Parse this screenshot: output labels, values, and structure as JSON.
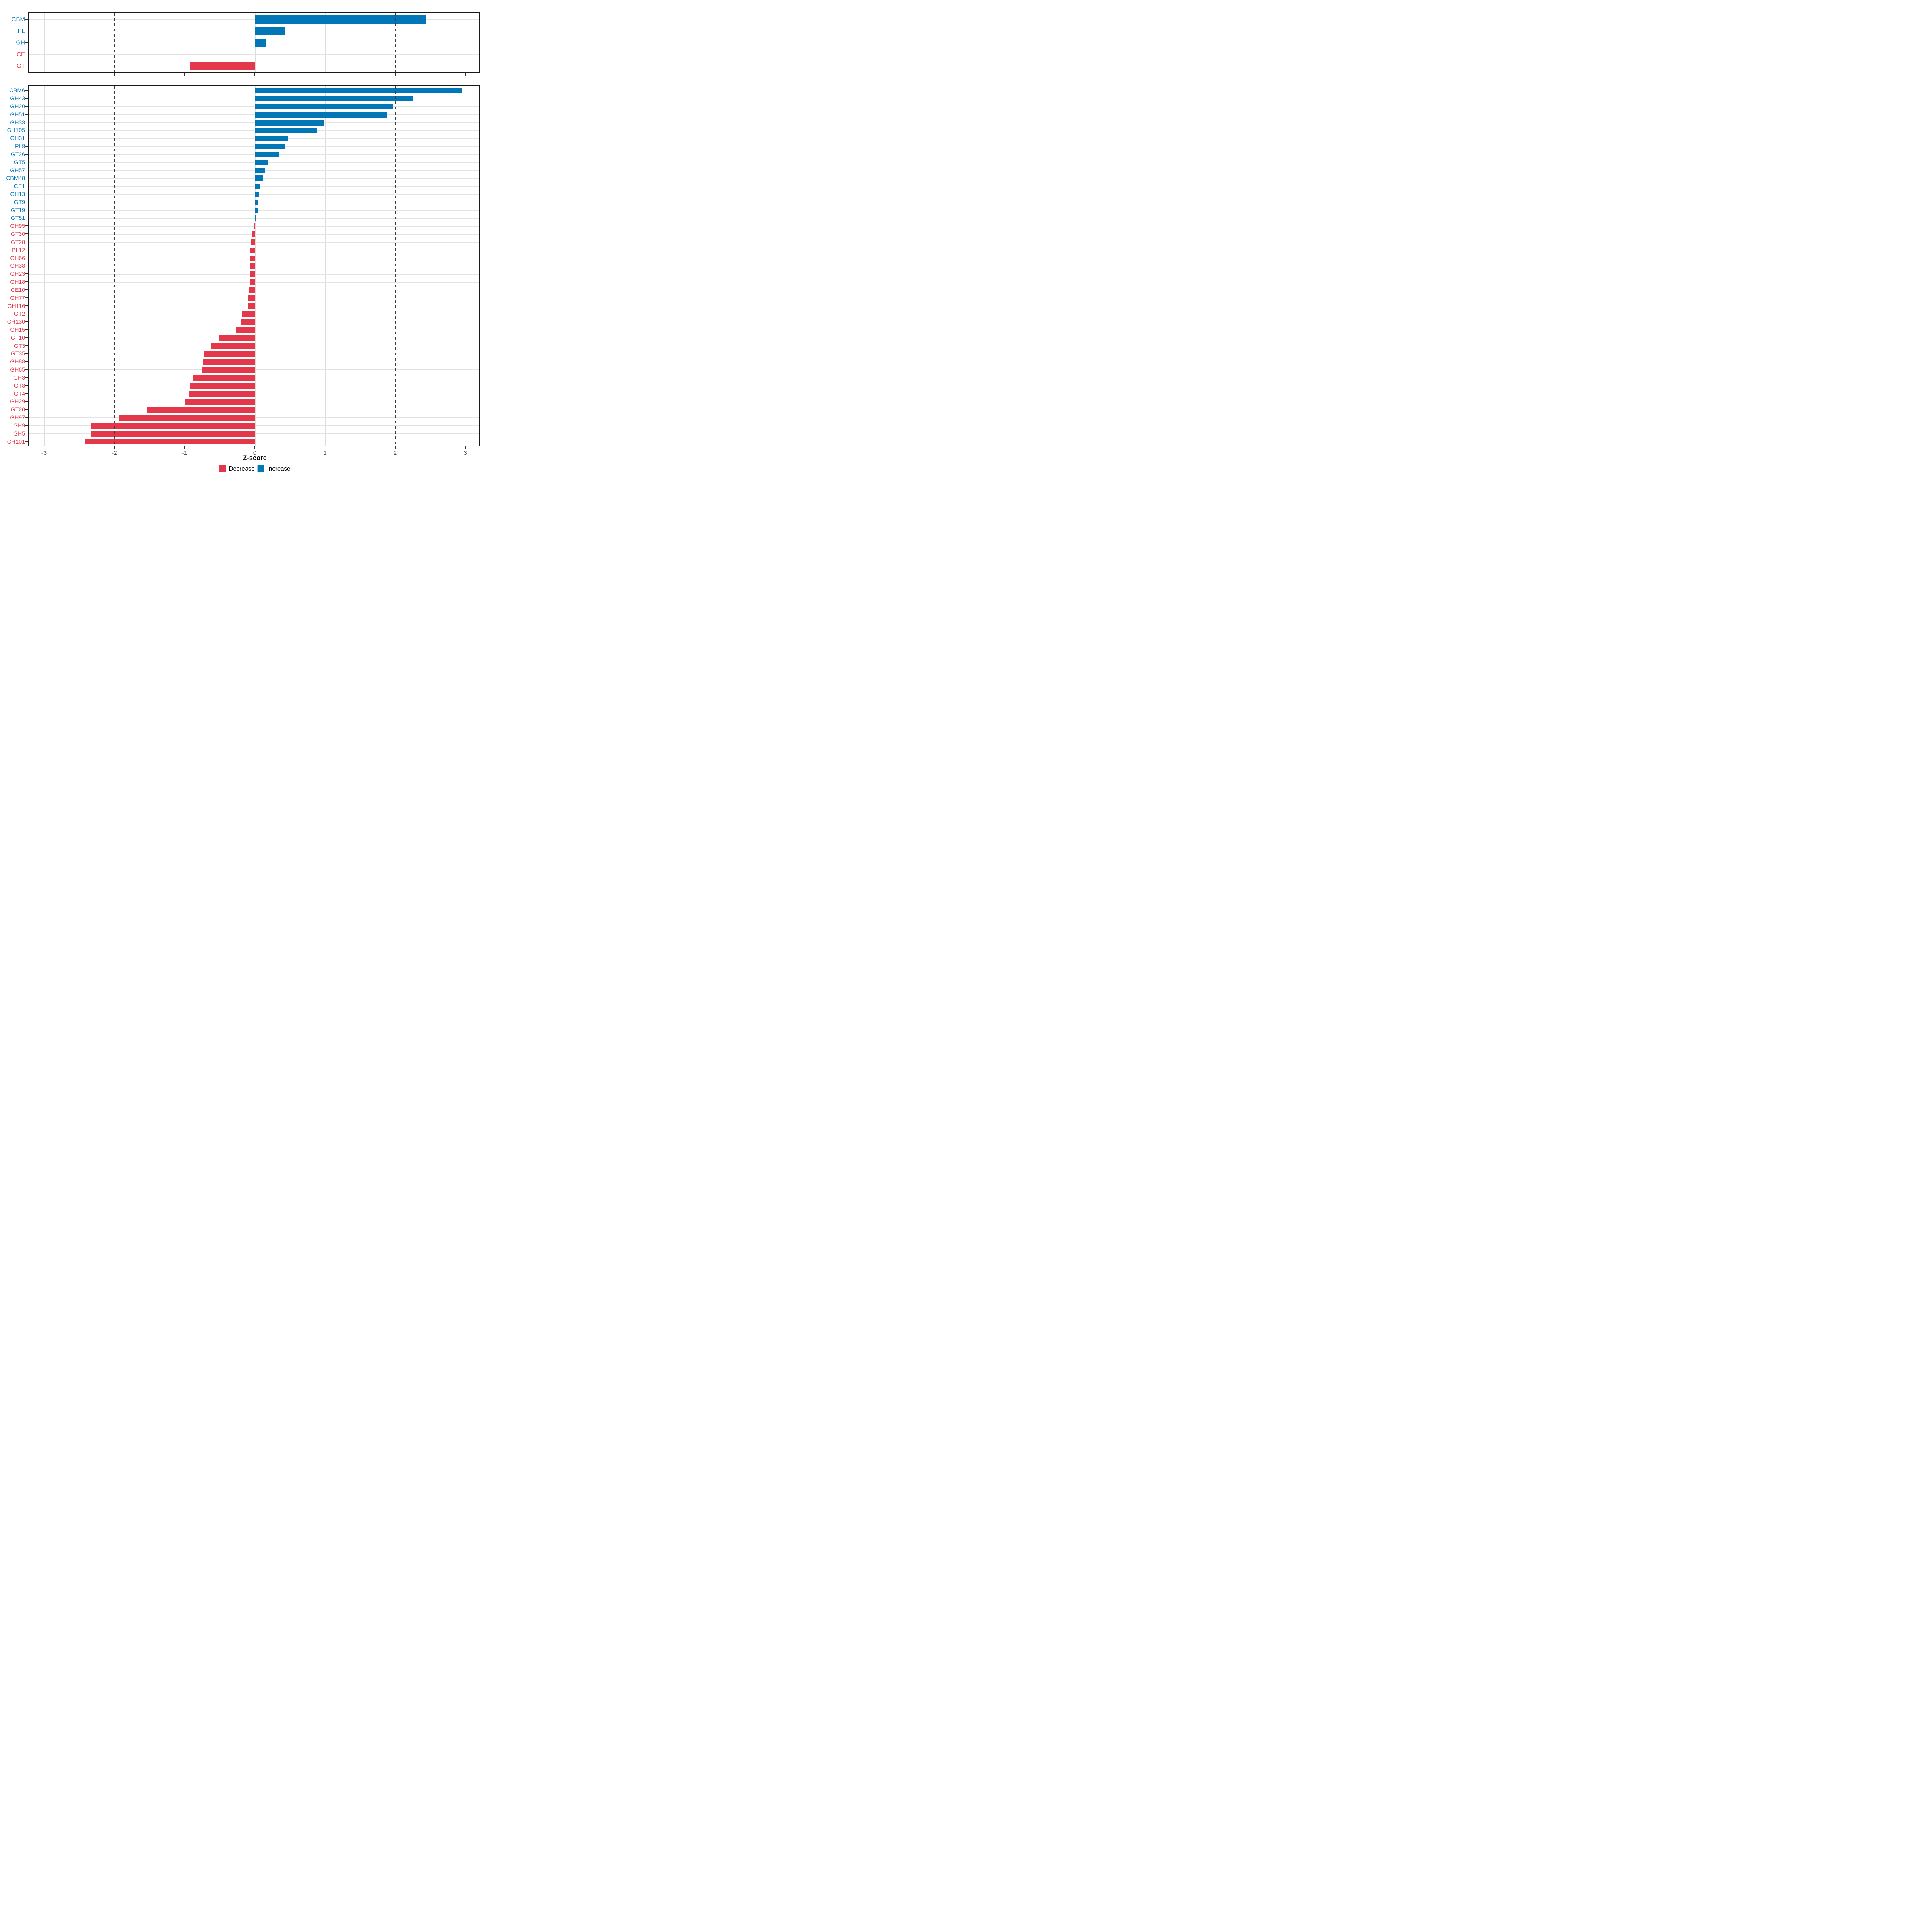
{
  "colors": {
    "increase": "#0277B8",
    "decrease": "#E4384A",
    "grid_h": "#E3E3E3",
    "grid_v": "#DCDCDC",
    "dashed_line": "#3C3C3C",
    "panel_border": "#1A1A1A",
    "tick_mark": "#333333",
    "axis_text": "#4D4D4D"
  },
  "axis": {
    "title": "Z-score",
    "tick_values": [
      -3,
      -2,
      -1,
      0,
      1,
      2,
      3
    ],
    "tick_labels": [
      "-3",
      "-2",
      "-1",
      "0",
      "1",
      "2",
      "3"
    ],
    "dashed_at": [
      -2,
      2
    ],
    "range": [
      -3.22,
      3.22
    ]
  },
  "legend": {
    "decrease_label": "Decrease",
    "increase_label": "Increase"
  },
  "chart_data": [
    {
      "type": "bar",
      "orientation": "horizontal",
      "panel": "classes",
      "title": "",
      "xlabel": "Z-score",
      "xlim": [
        -3.22,
        3.22
      ],
      "grid": true,
      "categories": [
        "CBM",
        "PL",
        "GH",
        "CE",
        "GT"
      ],
      "values": [
        2.43,
        0.42,
        0.15,
        0,
        -0.92
      ],
      "directions": [
        "inc",
        "inc",
        "inc",
        "dec",
        "dec"
      ]
    },
    {
      "type": "bar",
      "orientation": "horizontal",
      "panel": "families",
      "title": "",
      "xlabel": "Z-score",
      "xlim": [
        -3.22,
        3.22
      ],
      "grid": true,
      "categories": [
        "CBM6",
        "GH43",
        "GH20",
        "GH51",
        "GH33",
        "GH105",
        "GH31",
        "PL8",
        "GT26",
        "GT5",
        "GH57",
        "CBM48",
        "CE1",
        "GH13",
        "GT9",
        "GT19",
        "GT51",
        "GH95",
        "GT30",
        "GT28",
        "PL12",
        "GH66",
        "GH38",
        "GH23",
        "GH18",
        "CE10",
        "GH77",
        "GH116",
        "GT2",
        "GH130",
        "GH15",
        "GT10",
        "GT3",
        "GT35",
        "GH88",
        "GH65",
        "GH3",
        "GT8",
        "GT4",
        "GH29",
        "GT20",
        "GH97",
        "GH9",
        "GH5",
        "GH101"
      ],
      "values": [
        2.95,
        2.24,
        1.96,
        1.88,
        0.98,
        0.88,
        0.47,
        0.43,
        0.34,
        0.18,
        0.14,
        0.11,
        0.07,
        0.055,
        0.045,
        0.04,
        0.01,
        -0.02,
        -0.05,
        -0.06,
        -0.07,
        -0.07,
        -0.07,
        -0.07,
        -0.075,
        -0.085,
        -0.1,
        -0.11,
        -0.19,
        -0.2,
        -0.27,
        -0.51,
        -0.63,
        -0.73,
        -0.74,
        -0.75,
        -0.88,
        -0.93,
        -0.94,
        -1.0,
        -1.55,
        -1.94,
        -2.33,
        -2.33,
        -2.43
      ],
      "directions": [
        "inc",
        "inc",
        "inc",
        "inc",
        "inc",
        "inc",
        "inc",
        "inc",
        "inc",
        "inc",
        "inc",
        "inc",
        "inc",
        "inc",
        "inc",
        "inc",
        "inc",
        "dec",
        "dec",
        "dec",
        "dec",
        "dec",
        "dec",
        "dec",
        "dec",
        "dec",
        "dec",
        "dec",
        "dec",
        "dec",
        "dec",
        "dec",
        "dec",
        "dec",
        "dec",
        "dec",
        "dec",
        "dec",
        "dec",
        "dec",
        "dec",
        "dec",
        "dec",
        "dec",
        "dec"
      ]
    }
  ]
}
